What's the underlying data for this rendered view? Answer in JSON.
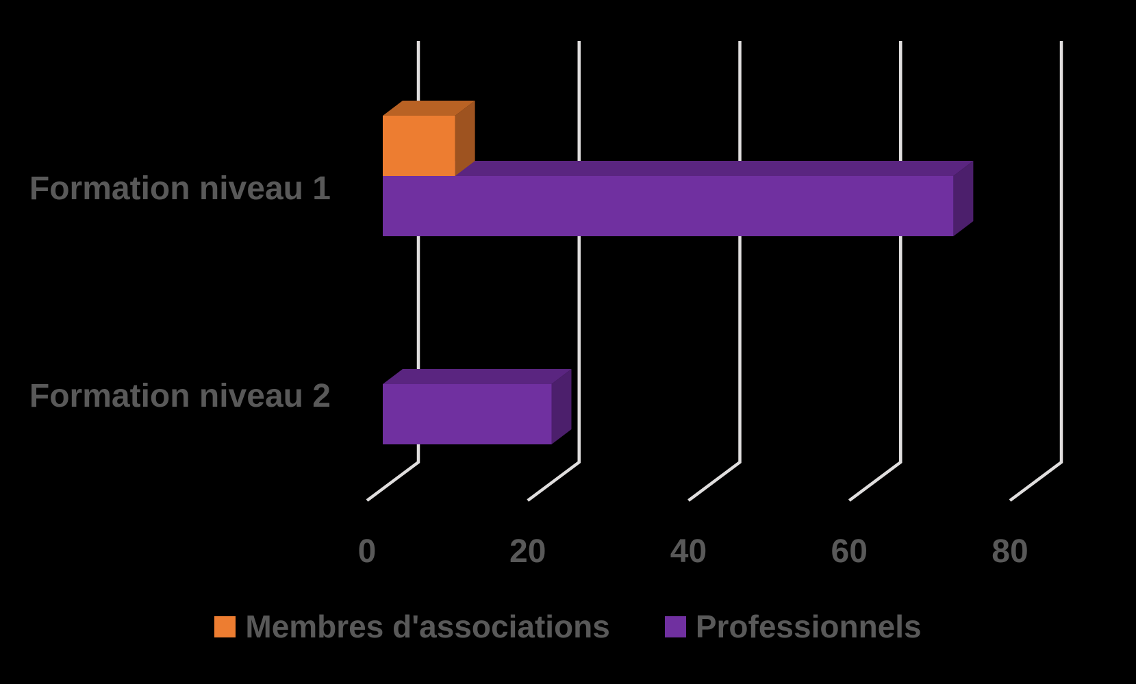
{
  "chart_data": {
    "type": "bar",
    "orientation": "horizontal",
    "style": "3d",
    "title": "",
    "categories": [
      "Formation niveau 1",
      "Formation niveau 2"
    ],
    "series": [
      {
        "name": "Membres d'associations",
        "color": "#ED7D31",
        "values": [
          9,
          0
        ]
      },
      {
        "name": "Professionnels",
        "color": "#7030A0",
        "values": [
          71,
          21
        ]
      }
    ],
    "xticks": [
      0,
      20,
      40,
      60,
      80
    ],
    "xlim": [
      0,
      88
    ],
    "grid": true,
    "legend_position": "bottom"
  },
  "colors": {
    "background": "#000000",
    "text": "#595959",
    "gridline": "#E0DEDE",
    "orange_front": "#ED7D31",
    "orange_top": "#B96224",
    "orange_side": "#9E5320",
    "purple_front": "#7030A0",
    "purple_top": "#5A2580",
    "purple_side": "#4C1F6C"
  }
}
